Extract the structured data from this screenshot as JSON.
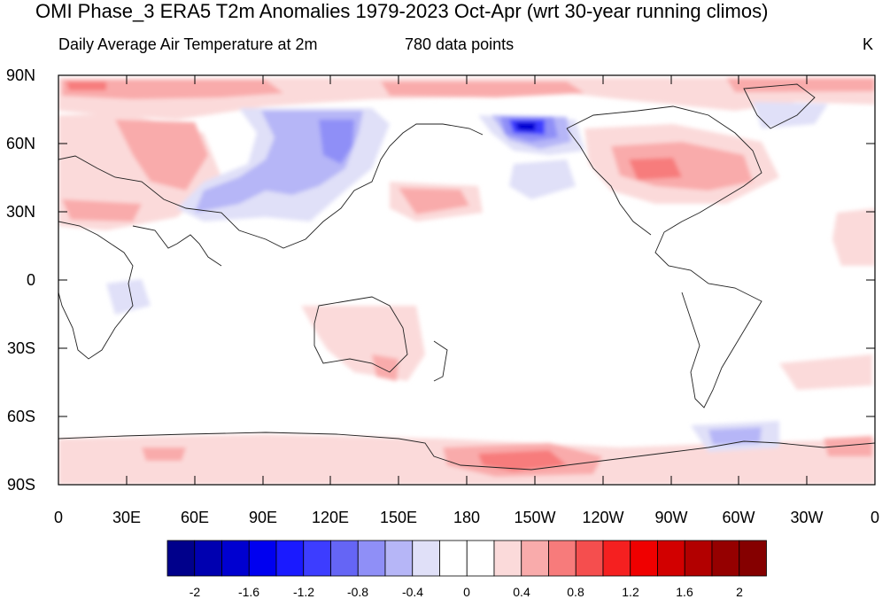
{
  "title": "OMI Phase_3 ERA5 T2m Anomalies 1979-2023 Oct-Apr (wrt 30-year running climos)",
  "left_subtitle": "Daily Average Air Temperature at 2m",
  "center_subtitle": "780 data points",
  "units": "K",
  "lat_labels": [
    "90N",
    "60N",
    "30N",
    "0",
    "30S",
    "60S",
    "90S"
  ],
  "lon_labels": [
    "0",
    "30E",
    "60E",
    "90E",
    "120E",
    "150E",
    "180",
    "150W",
    "120W",
    "90W",
    "60W",
    "30W",
    "0"
  ],
  "colorbar": {
    "colors": [
      "#00008b",
      "#0000b0",
      "#0000d0",
      "#0000f0",
      "#1a1aff",
      "#3d3dff",
      "#6565f5",
      "#8f8ff7",
      "#b6b6f7",
      "#e0e0f8",
      "#ffffff",
      "#ffffff",
      "#fbdada",
      "#f9abab",
      "#f77b7b",
      "#f54e4e",
      "#f52020",
      "#f00000",
      "#d20000",
      "#b20000",
      "#950000",
      "#850000"
    ],
    "tick_labels": [
      "-2",
      "-1.6",
      "-1.2",
      "-0.8",
      "-0.4",
      "0",
      "0.4",
      "0.8",
      "1.2",
      "1.6",
      "2"
    ]
  }
}
